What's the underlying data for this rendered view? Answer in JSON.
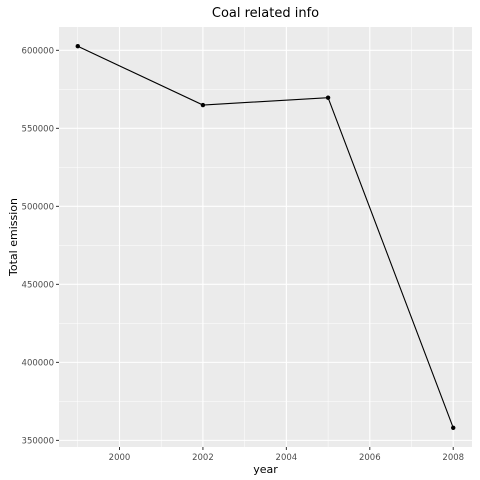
{
  "chart_data": {
    "type": "line",
    "title": "Coal related info",
    "xlabel": "year",
    "ylabel": "Total emission",
    "x": [
      1999,
      2002,
      2005,
      2008
    ],
    "series": [
      {
        "values": [
          602624,
          564940,
          569655,
          358085
        ]
      }
    ],
    "xlim": [
      1998.55,
      2008.45
    ],
    "ylim": [
      345758,
      614951
    ],
    "x_ticks": [
      2000,
      2002,
      2004,
      2006,
      2008
    ],
    "x_tick_labels": [
      "2000",
      "2002",
      "2004",
      "2006",
      "2008"
    ],
    "x_minor_ticks": [
      1999,
      2001,
      2003,
      2005,
      2007
    ],
    "y_ticks": [
      350000,
      400000,
      450000,
      500000,
      550000,
      600000
    ],
    "y_tick_labels": [
      "350000",
      "400000",
      "450000",
      "500000",
      "550000",
      "600000"
    ],
    "y_minor_ticks": [
      375000,
      425000,
      475000,
      525000,
      575000
    ],
    "grid": true,
    "legend": "none",
    "colors": {
      "panel": "#ebebeb",
      "grid": "#ffffff",
      "line": "#000000",
      "point": "#000000"
    }
  }
}
